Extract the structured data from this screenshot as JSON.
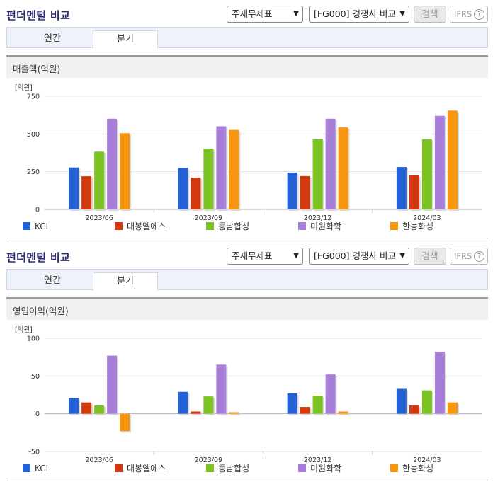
{
  "panels": [
    {
      "header": {
        "title": "펀더멘털 비교"
      },
      "controls": {
        "statement_select": "주재무제표",
        "peer_select": "[FG000] 경쟁사 비교",
        "search_label": "검색",
        "ifrs_label": "IFRS",
        "help_glyph": "?"
      },
      "tabs": {
        "annual": "연간",
        "quarter": "분기"
      },
      "section_title": "매출액(억원)",
      "chart_data": {
        "type": "bar",
        "unit": "[억원]",
        "categories": [
          "2023/06",
          "2023/09",
          "2023/12",
          "2024/03"
        ],
        "series": [
          {
            "name": "KCI",
            "color": "#2462d6",
            "values": [
              278,
              276,
              244,
              281
            ]
          },
          {
            "name": "대봉엘에스",
            "color": "#d2390f",
            "values": [
              220,
              210,
              221,
              225
            ]
          },
          {
            "name": "동남합성",
            "color": "#7cc223",
            "values": [
              383,
              403,
              464,
              465
            ]
          },
          {
            "name": "미원화학",
            "color": "#a87fd8",
            "values": [
              601,
              551,
              601,
              620
            ]
          },
          {
            "name": "한농화성",
            "color": "#f7960e",
            "values": [
              505,
              527,
              543,
              655
            ]
          }
        ],
        "ylim": [
          0,
          750
        ],
        "yticks": [
          0,
          250,
          500,
          750
        ],
        "grid": true,
        "legend": "bottom"
      }
    },
    {
      "header": {
        "title": "펀더멘털 비교"
      },
      "controls": {
        "statement_select": "주재무제표",
        "peer_select": "[FG000] 경쟁사 비교",
        "search_label": "검색",
        "ifrs_label": "IFRS",
        "help_glyph": "?"
      },
      "tabs": {
        "annual": "연간",
        "quarter": "분기"
      },
      "section_title": "영업이익(억원)",
      "chart_data": {
        "type": "bar",
        "unit": "[억원]",
        "categories": [
          "2023/06",
          "2023/09",
          "2023/12",
          "2024/03"
        ],
        "series": [
          {
            "name": "KCI",
            "color": "#2462d6",
            "values": [
              21,
              29,
              27,
              33
            ]
          },
          {
            "name": "대봉엘에스",
            "color": "#d2390f",
            "values": [
              15,
              3,
              9,
              11
            ]
          },
          {
            "name": "동남합성",
            "color": "#7cc223",
            "values": [
              11,
              23,
              24,
              31
            ]
          },
          {
            "name": "미원화학",
            "color": "#a87fd8",
            "values": [
              77,
              65,
              52,
              82
            ]
          },
          {
            "name": "한농화성",
            "color": "#f7960e",
            "values": [
              -23,
              2,
              3,
              15
            ]
          }
        ],
        "ylim": [
          -50,
          100
        ],
        "yticks": [
          -50,
          0,
          50,
          100
        ],
        "grid": true,
        "legend": "bottom"
      }
    }
  ]
}
